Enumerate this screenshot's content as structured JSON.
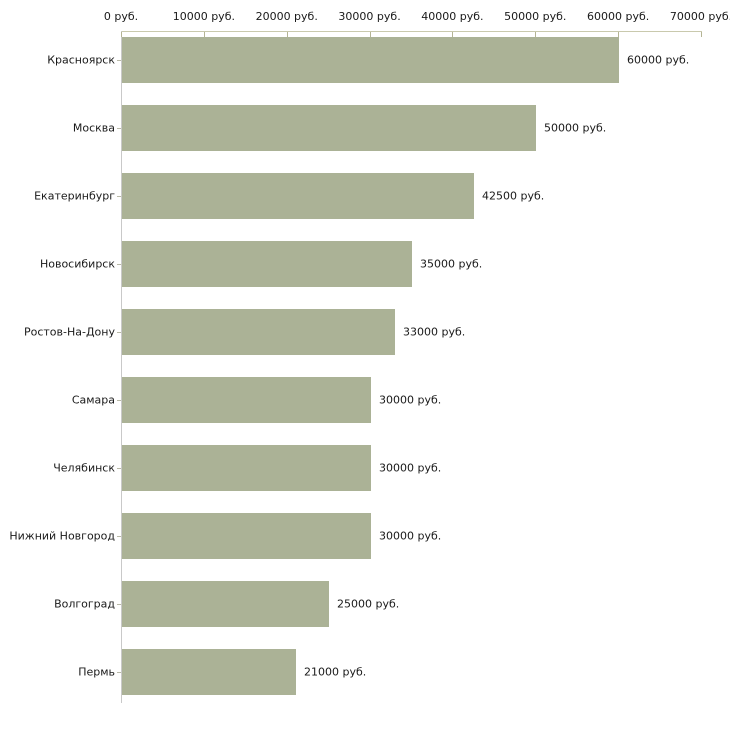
{
  "chart_data": {
    "type": "bar",
    "orientation": "horizontal",
    "title": "",
    "xlabel": "",
    "ylabel": "",
    "unit": "руб.",
    "categories": [
      "Красноярск",
      "Москва",
      "Екатеринбург",
      "Новосибирск",
      "Ростов-На-Дону",
      "Самара",
      "Челябинск",
      "Нижний Новгород",
      "Волгоград",
      "Пермь"
    ],
    "values": [
      60000,
      50000,
      42500,
      35000,
      33000,
      30000,
      30000,
      30000,
      25000,
      21000
    ],
    "value_labels": [
      "60000 руб.",
      "50000 руб.",
      "42500 руб.",
      "35000 руб.",
      "33000 руб.",
      "30000 руб.",
      "30000 руб.",
      "30000 руб.",
      "25000 руб.",
      "21000 руб."
    ],
    "x_ticks": [
      0,
      10000,
      20000,
      30000,
      40000,
      50000,
      60000,
      70000
    ],
    "x_tick_labels": [
      "0 руб.",
      "10000 руб.",
      "20000 руб.",
      "30000 руб.",
      "40000 руб.",
      "50000 руб.",
      "60000 руб.",
      "70000 руб."
    ],
    "xlim": [
      0,
      70000
    ],
    "grid": false,
    "legend": false,
    "colors": {
      "bar_fill": "#abb296",
      "x_axis_line": "#c9c9ad",
      "x_tick": "#b4b494",
      "y_axis_line": "#c9c9c9",
      "category_tick": "#b9b9a8",
      "text": "#1a1a1a",
      "background": "#ffffff"
    }
  },
  "layout_note": "horizontal bar chart of salaries by city, value axis on top"
}
